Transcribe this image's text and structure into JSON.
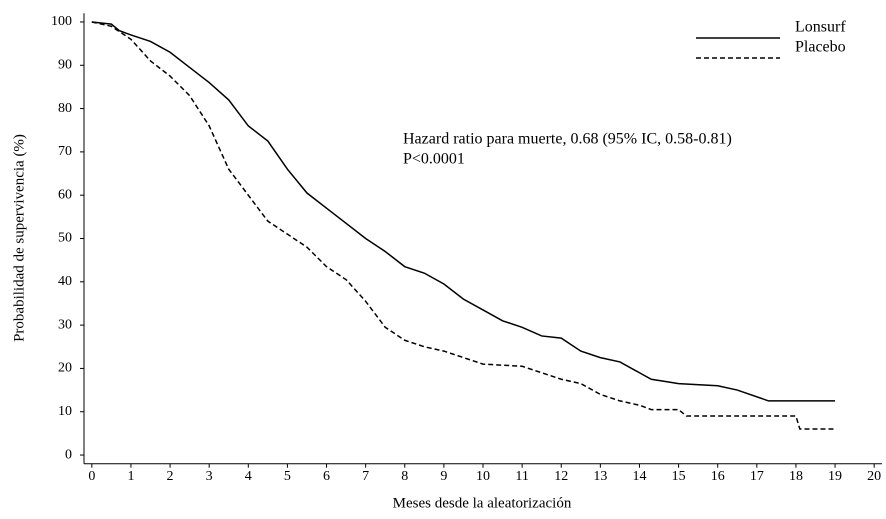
{
  "chart_data": {
    "type": "line",
    "xlabel": "Meses desde la aleatorización",
    "ylabel": "Probabilidad de supervivencia (%)",
    "annotations": [
      "Hazard ratio para muerte, 0.68 (95% IC, 0.58-0.81)",
      "P<0.0001"
    ],
    "series": [
      {
        "name": "Lonsurf",
        "color": "#000000",
        "dash": false,
        "x": [
          0,
          0.5,
          0.7,
          1,
          1.5,
          2,
          2.5,
          3,
          3.5,
          4,
          4.5,
          5,
          5.5,
          6,
          6.5,
          7,
          7.5,
          8,
          8.5,
          9,
          9.5,
          10,
          10.5,
          11,
          11.5,
          12,
          12.5,
          13,
          13.5,
          14,
          14.3,
          15,
          16,
          16.5,
          17.3,
          19
        ],
        "values": [
          100,
          99.5,
          98,
          97,
          95.5,
          93,
          89.5,
          86,
          82,
          76,
          72.5,
          66,
          60.5,
          57,
          53.5,
          50,
          47,
          43.5,
          42,
          39.5,
          36,
          33.5,
          31,
          29.5,
          27.5,
          27,
          24,
          22.5,
          21.5,
          19,
          17.5,
          16.5,
          16,
          15,
          12.5,
          12.5
        ]
      },
      {
        "name": "Placebo",
        "color": "#000000",
        "dash": true,
        "x": [
          0,
          0.5,
          1,
          1.5,
          2,
          2.5,
          3,
          3.5,
          4,
          4.5,
          5,
          5.5,
          6,
          6.5,
          7,
          7.5,
          8,
          8.5,
          9,
          9.5,
          10,
          11,
          11.5,
          12,
          12.5,
          13,
          13.5,
          14,
          14.3,
          15,
          15.2,
          18,
          18.1,
          19
        ],
        "values": [
          100,
          99,
          96,
          91,
          87.5,
          83,
          76,
          66,
          60,
          54,
          51,
          48,
          43.5,
          40.5,
          35.5,
          29.5,
          26.5,
          25,
          24,
          22.5,
          21,
          20.5,
          19,
          17.5,
          16.5,
          14,
          12.5,
          11.5,
          10.5,
          10.5,
          9,
          9,
          6,
          6
        ]
      }
    ],
    "xlim": [
      -0.2,
      20.2
    ],
    "ylim": [
      -2,
      102
    ],
    "xticks": [
      0,
      1,
      2,
      3,
      4,
      5,
      6,
      7,
      8,
      9,
      10,
      11,
      12,
      13,
      14,
      15,
      16,
      17,
      18,
      19,
      20
    ],
    "yticks": [
      0,
      10,
      20,
      30,
      40,
      50,
      60,
      70,
      80,
      90,
      100
    ],
    "legend": "upper right"
  }
}
